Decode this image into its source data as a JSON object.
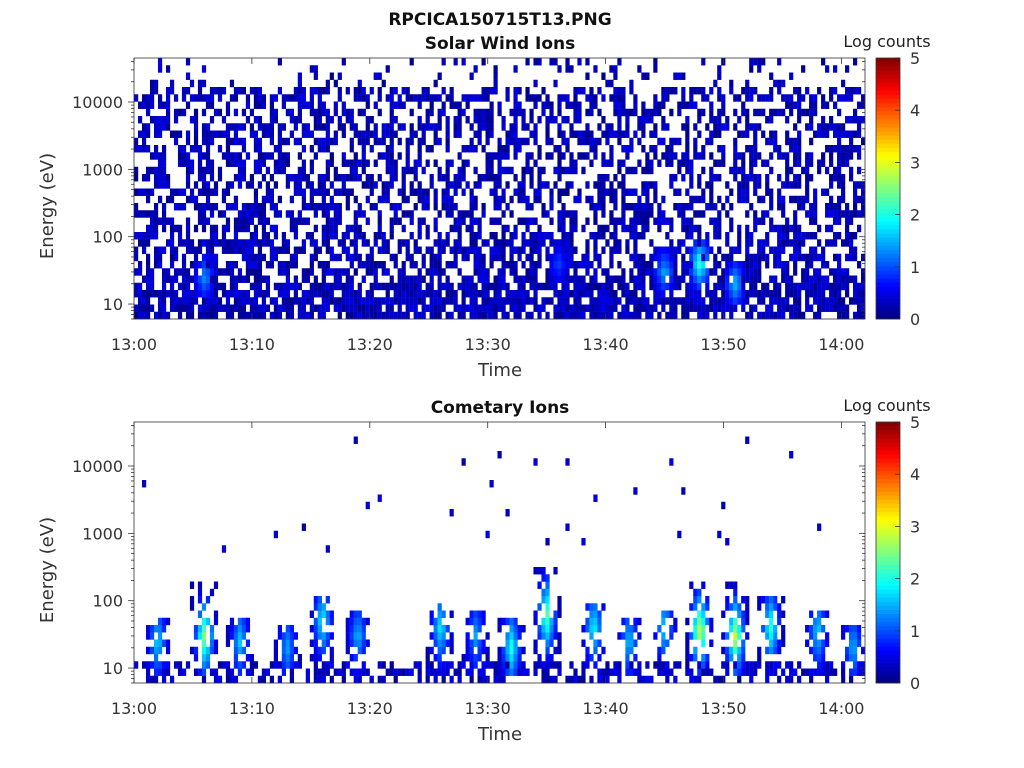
{
  "figure_title": "RPCICA150715T13.PNG",
  "chart_data": [
    {
      "type": "heatmap",
      "title": "Solar Wind Ions",
      "xlabel": "Time",
      "ylabel": "Energy (eV)",
      "x_ticks": [
        "13:00",
        "13:10",
        "13:20",
        "13:30",
        "13:40",
        "13:50",
        "14:00"
      ],
      "xlim": [
        "13:00",
        "14:02"
      ],
      "y_scale": "log",
      "y_ticks": [
        10,
        100,
        1000,
        10000
      ],
      "ylim": [
        6,
        45000
      ],
      "colorbar": {
        "label": "Log counts",
        "ticks": [
          0,
          1,
          2,
          3,
          4,
          5
        ],
        "range": [
          0,
          5
        ],
        "colormap": "jet"
      },
      "description_values": {
        "background_level": 0.5,
        "hotspots": [
          {
            "time": "13:06",
            "energy": 25,
            "log_counts": 1.4
          },
          {
            "time": "13:48",
            "energy": 40,
            "log_counts": 2.2
          },
          {
            "time": "13:51",
            "energy": 20,
            "log_counts": 1.6
          },
          {
            "time": "13:36",
            "energy": 40,
            "log_counts": 1.0
          },
          {
            "time": "13:45",
            "energy": 30,
            "log_counts": 1.5
          }
        ]
      }
    },
    {
      "type": "heatmap",
      "title": "Cometary Ions",
      "xlabel": "Time",
      "ylabel": "Energy (eV)",
      "x_ticks": [
        "13:00",
        "13:10",
        "13:20",
        "13:30",
        "13:40",
        "13:50",
        "14:00"
      ],
      "xlim": [
        "13:00",
        "14:02"
      ],
      "y_scale": "log",
      "y_ticks": [
        10,
        100,
        1000,
        10000
      ],
      "ylim": [
        6,
        45000
      ],
      "colorbar": {
        "label": "Log counts",
        "ticks": [
          0,
          1,
          2,
          3,
          4,
          5
        ],
        "range": [
          0,
          5
        ],
        "colormap": "jet"
      },
      "description_values": {
        "bursts": [
          {
            "time": "13:02",
            "peak_energy": 25,
            "log_counts": 1.6
          },
          {
            "time": "13:06",
            "peak_energy": 30,
            "log_counts": 2.5
          },
          {
            "time": "13:09",
            "peak_energy": 25,
            "log_counts": 1.5
          },
          {
            "time": "13:13",
            "peak_energy": 20,
            "log_counts": 1.3
          },
          {
            "time": "13:16",
            "peak_energy": 50,
            "log_counts": 1.8
          },
          {
            "time": "13:19",
            "peak_energy": 30,
            "log_counts": 1.4
          },
          {
            "time": "13:26",
            "peak_energy": 40,
            "log_counts": 1.7
          },
          {
            "time": "13:29",
            "peak_energy": 30,
            "log_counts": 1.3
          },
          {
            "time": "13:32",
            "peak_energy": 20,
            "log_counts": 1.9
          },
          {
            "time": "13:35",
            "peak_energy": 60,
            "log_counts": 2.3
          },
          {
            "time": "13:39",
            "peak_energy": 40,
            "log_counts": 1.8
          },
          {
            "time": "13:42",
            "peak_energy": 25,
            "log_counts": 1.5
          },
          {
            "time": "13:45",
            "peak_energy": 40,
            "log_counts": 1.6
          },
          {
            "time": "13:48",
            "peak_energy": 35,
            "log_counts": 2.9
          },
          {
            "time": "13:51",
            "peak_energy": 30,
            "log_counts": 2.7
          },
          {
            "time": "13:54",
            "peak_energy": 40,
            "log_counts": 2.0
          },
          {
            "time": "13:58",
            "peak_energy": 35,
            "log_counts": 1.6
          },
          {
            "time": "14:01",
            "peak_energy": 20,
            "log_counts": 1.4
          }
        ]
      }
    }
  ]
}
